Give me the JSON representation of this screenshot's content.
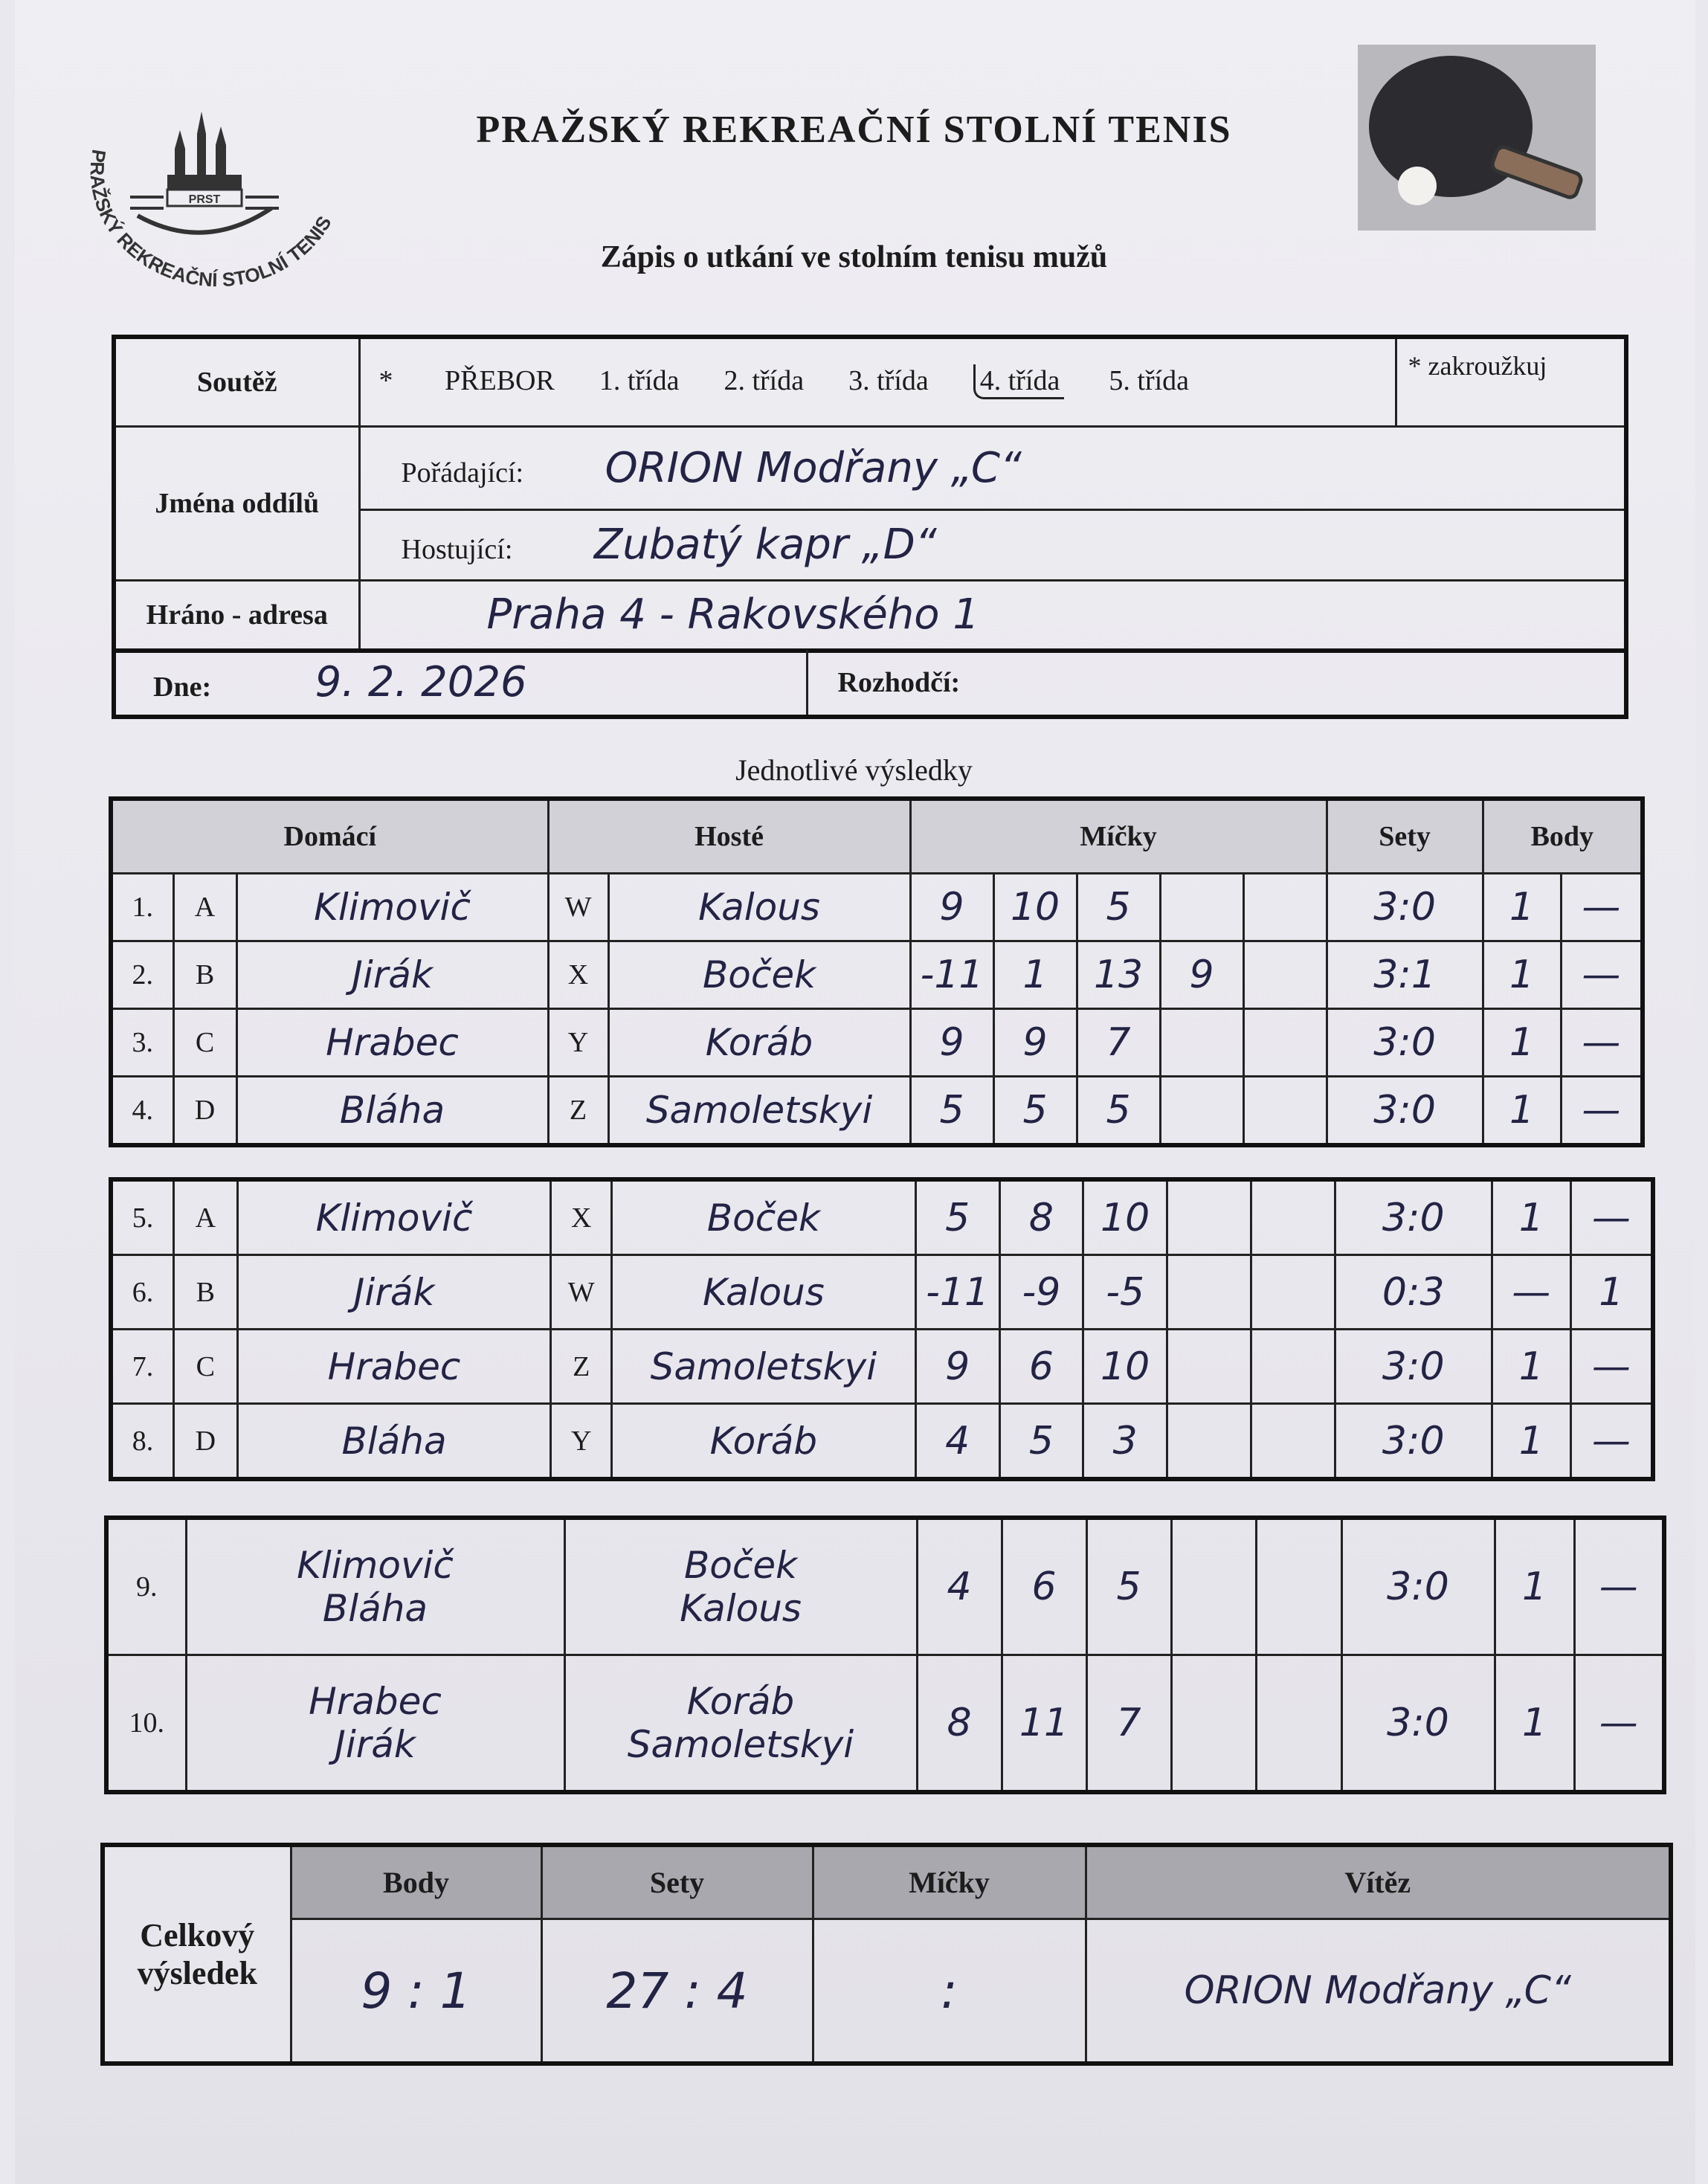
{
  "header": {
    "title": "PRAŽSKÝ REKREAČNÍ STOLNÍ TENIS",
    "subtitle": "Zápis o utkání ve stolním tenisu mužů",
    "logo": {
      "ring_text": "PRAŽSKÝ REKREAČNÍ STOLNÍ TENIS",
      "badge": "PRST"
    },
    "image_icon": "table-tennis-paddle-icon"
  },
  "info": {
    "soutez_label": "Soutěž",
    "soutez_star": "*",
    "soutez_options": [
      "PŘEBOR",
      "1. třída",
      "2. třída",
      "3. třída",
      "4. třída",
      "5. třída"
    ],
    "soutez_selected": "4. třída",
    "circle_note": "* zakroužkuj",
    "teams_label": "Jména oddílů",
    "home_label": "Pořádající:",
    "home_value": "ORION Modřany „C“",
    "guest_label": "Hostující:",
    "guest_value": "Zubatý kapr „D“",
    "address_label": "Hráno - adresa",
    "address_value": "Praha 4 - Rakovského 1",
    "date_label": "Dne:",
    "date_value": "9. 2. 2026",
    "referee_label": "Rozhodčí:",
    "referee_value": ""
  },
  "results": {
    "section_title": "Jednotlivé výsledky",
    "col_home": "Domácí",
    "col_guest": "Hosté",
    "col_balls": "Míčky",
    "col_sets": "Sety",
    "col_points": "Body",
    "singles_block1": [
      {
        "no": "1.",
        "hl": "A",
        "home": "Klimovič",
        "gl": "W",
        "guest": "Kalous",
        "balls": [
          "9",
          "10",
          "5",
          "",
          ""
        ],
        "sets": "3:0",
        "ph": "1",
        "pg": "—"
      },
      {
        "no": "2.",
        "hl": "B",
        "home": "Jirák",
        "gl": "X",
        "guest": "Boček",
        "balls": [
          "-11",
          "1",
          "13",
          "9",
          ""
        ],
        "sets": "3:1",
        "ph": "1",
        "pg": "—"
      },
      {
        "no": "3.",
        "hl": "C",
        "home": "Hrabec",
        "gl": "Y",
        "guest": "Koráb",
        "balls": [
          "9",
          "9",
          "7",
          "",
          ""
        ],
        "sets": "3:0",
        "ph": "1",
        "pg": "—"
      },
      {
        "no": "4.",
        "hl": "D",
        "home": "Bláha",
        "gl": "Z",
        "guest": "Samoletskyi",
        "balls": [
          "5",
          "5",
          "5",
          "",
          ""
        ],
        "sets": "3:0",
        "ph": "1",
        "pg": "—"
      }
    ],
    "singles_block2": [
      {
        "no": "5.",
        "hl": "A",
        "home": "Klimovič",
        "gl": "X",
        "guest": "Boček",
        "balls": [
          "5",
          "8",
          "10",
          "",
          ""
        ],
        "sets": "3:0",
        "ph": "1",
        "pg": "—"
      },
      {
        "no": "6.",
        "hl": "B",
        "home": "Jirák",
        "gl": "W",
        "guest": "Kalous",
        "balls": [
          "-11",
          "-9",
          "-5",
          "",
          ""
        ],
        "sets": "0:3",
        "ph": "—",
        "pg": "1"
      },
      {
        "no": "7.",
        "hl": "C",
        "home": "Hrabec",
        "gl": "Z",
        "guest": "Samoletskyi",
        "balls": [
          "9",
          "6",
          "10",
          "",
          ""
        ],
        "sets": "3:0",
        "ph": "1",
        "pg": "—"
      },
      {
        "no": "8.",
        "hl": "D",
        "home": "Bláha",
        "gl": "Y",
        "guest": "Koráb",
        "balls": [
          "4",
          "5",
          "3",
          "",
          ""
        ],
        "sets": "3:0",
        "ph": "1",
        "pg": "—"
      }
    ],
    "doubles": [
      {
        "no": "9.",
        "home": [
          "Klimovič",
          "Bláha"
        ],
        "guest": [
          "Boček",
          "Kalous"
        ],
        "balls": [
          "4",
          "6",
          "5",
          "",
          ""
        ],
        "sets": "3:0",
        "ph": "1",
        "pg": "—"
      },
      {
        "no": "10.",
        "home": [
          "Hrabec",
          "Jirák"
        ],
        "guest": [
          "Koráb",
          "Samoletskyi"
        ],
        "balls": [
          "8",
          "11",
          "7",
          "",
          ""
        ],
        "sets": "3:0",
        "ph": "1",
        "pg": "—"
      }
    ]
  },
  "summary": {
    "label": "Celkový výsledek",
    "col_points": "Body",
    "col_sets": "Sety",
    "col_balls": "Míčky",
    "col_winner": "Vítěz",
    "points": "9 : 1",
    "sets": "27 : 4",
    "balls": ":",
    "winner": "ORION Modřany „C“"
  }
}
